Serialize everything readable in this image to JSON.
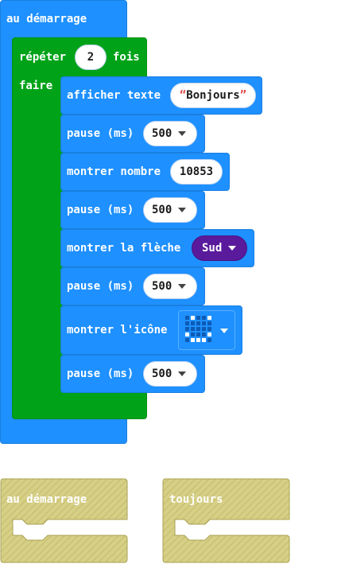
{
  "colors": {
    "basic": "#1e90ff",
    "loops": "#00a318",
    "arrow_dropdown": "#5a1a9c",
    "disabled": "#d6cf86"
  },
  "on_start": {
    "label": "au démarrage"
  },
  "repeat": {
    "label_prefix": "répéter",
    "count": "2",
    "label_suffix": "fois",
    "do_label": "faire"
  },
  "statements": [
    {
      "label": "afficher texte",
      "value": "Bonjours"
    },
    {
      "label": "pause (ms)",
      "value": "500"
    },
    {
      "label": "montrer nombre",
      "value": "10853"
    },
    {
      "label": "pause (ms)",
      "value": "500"
    },
    {
      "label": "montrer la flèche",
      "value": "Sud"
    },
    {
      "label": "pause (ms)",
      "value": "500"
    },
    {
      "label": "montrer l'icône",
      "icon": "smiley-led-icon"
    },
    {
      "label": "pause (ms)",
      "value": "500"
    }
  ],
  "disabled_blocks": [
    {
      "label": "au démarrage"
    },
    {
      "label": "toujours"
    }
  ]
}
